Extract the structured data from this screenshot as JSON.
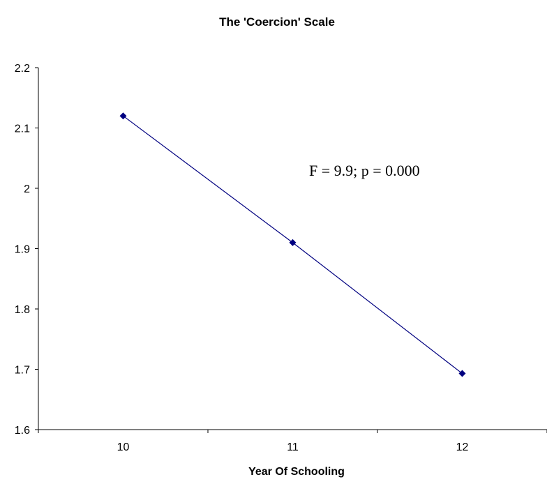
{
  "chart_data": {
    "type": "line",
    "title": "The 'Coercion' Scale",
    "xlabel": "Year Of Schooling",
    "ylabel": "",
    "categories": [
      "10",
      "11",
      "12"
    ],
    "series": [
      {
        "values": [
          2.12,
          1.91,
          1.693
        ]
      }
    ],
    "ylim": [
      1.6,
      2.2
    ],
    "yticks": [
      "2.2",
      "2.1",
      "2",
      "1.9",
      "1.8",
      "1.7",
      "1.6"
    ],
    "grid": false,
    "legend": "none",
    "annotation": "F = 9.9; p = 0.000",
    "colors": {
      "series": "#000080",
      "axis": "#000000"
    }
  }
}
